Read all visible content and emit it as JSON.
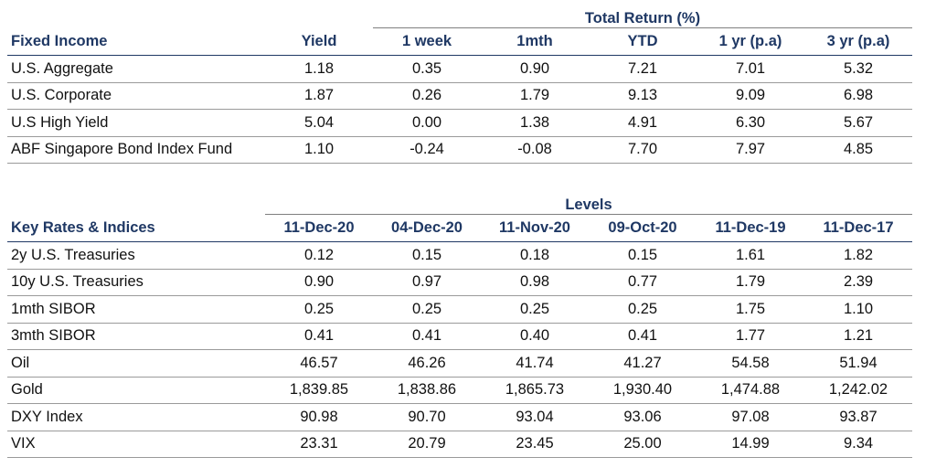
{
  "fixed_income": {
    "group_header": "Total Return (%)",
    "columns": [
      "Fixed Income",
      "Yield",
      "1 week",
      "1mth",
      "YTD",
      "1 yr (p.a)",
      "3 yr (p.a)"
    ],
    "rows": [
      [
        "U.S. Aggregate",
        "1.18",
        "0.35",
        "0.90",
        "7.21",
        "7.01",
        "5.32"
      ],
      [
        "U.S. Corporate",
        "1.87",
        "0.26",
        "1.79",
        "9.13",
        "9.09",
        "6.98"
      ],
      [
        "U.S High Yield",
        "5.04",
        "0.00",
        "1.38",
        "4.91",
        "6.30",
        "5.67"
      ],
      [
        "ABF Singapore Bond Index Fund",
        "1.10",
        "-0.24",
        "-0.08",
        "7.70",
        "7.97",
        "4.85"
      ]
    ]
  },
  "key_rates": {
    "group_header": "Levels",
    "columns": [
      "Key Rates & Indices",
      "11-Dec-20",
      "04-Dec-20",
      "11-Nov-20",
      "09-Oct-20",
      "11-Dec-19",
      "11-Dec-17"
    ],
    "rows": [
      [
        "2y U.S. Treasuries",
        "0.12",
        "0.15",
        "0.18",
        "0.15",
        "1.61",
        "1.82"
      ],
      [
        "10y U.S. Treasuries",
        "0.90",
        "0.97",
        "0.98",
        "0.77",
        "1.79",
        "2.39"
      ],
      [
        "1mth SIBOR",
        "0.25",
        "0.25",
        "0.25",
        "0.25",
        "1.75",
        "1.10"
      ],
      [
        "3mth SIBOR",
        "0.41",
        "0.41",
        "0.40",
        "0.41",
        "1.77",
        "1.21"
      ],
      [
        "Oil",
        "46.57",
        "46.26",
        "41.74",
        "41.27",
        "54.58",
        "51.94"
      ],
      [
        "Gold",
        "1,839.85",
        "1,838.86",
        "1,865.73",
        "1,930.40",
        "1,474.88",
        "1,242.02"
      ],
      [
        "DXY Index",
        "90.98",
        "90.70",
        "93.04",
        "93.06",
        "97.08",
        "93.87"
      ],
      [
        "VIX",
        "23.31",
        "20.79",
        "23.45",
        "25.00",
        "14.99",
        "9.34"
      ]
    ]
  }
}
